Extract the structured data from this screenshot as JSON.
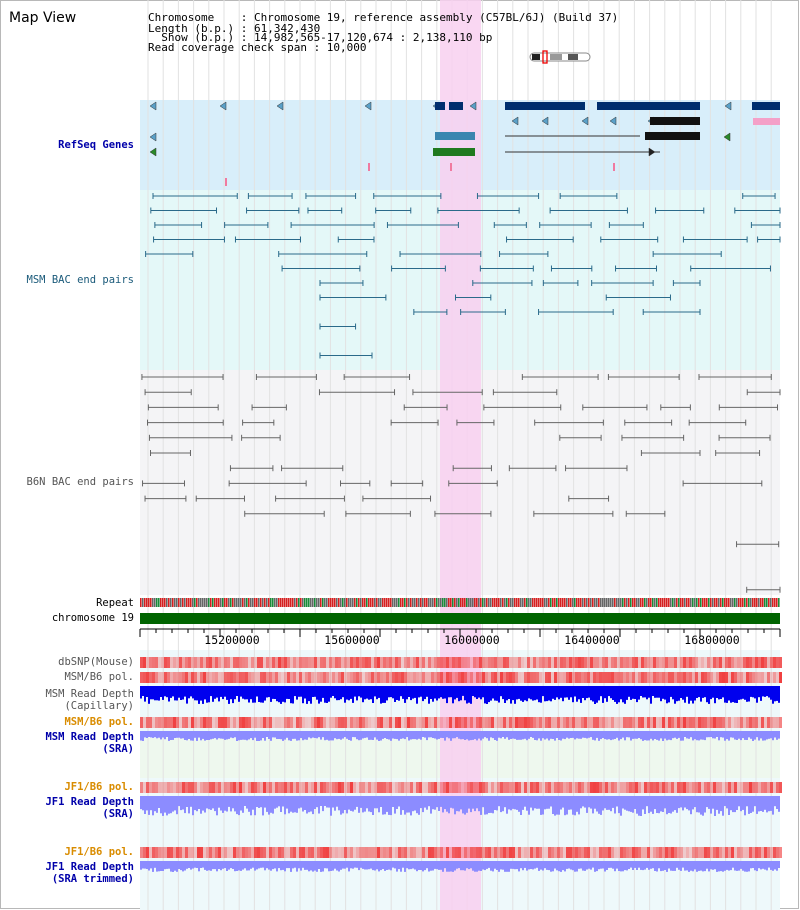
{
  "header": {
    "title": "Map View",
    "chromosome_line": "Chromosome    : Chromosome 19, reference assembly (C57BL/6J) (Build 37)",
    "length_line": "Length (b.p.) : 61,342,430",
    "show_line": "  Show (b.p.) : 14,982,565-17,120,674 : 2,138,110 bp",
    "coverage_line": "Read coverage check span : 10,000"
  },
  "tracks": {
    "refseq": "RefSeq Genes",
    "msm_bac": "MSM BAC end pairs",
    "b6n_bac": "B6N BAC end pairs",
    "repeat": "Repeat",
    "chromosome": "chromosome 19",
    "dbsnp": "dbSNP(Mouse)",
    "msm_b6_pol_1": "MSM/B6 pol.",
    "msm_depth_cap_1": "MSM Read Depth",
    "msm_depth_cap_2": "(Capillary)",
    "msm_b6_pol_2": "MSM/B6 pol.",
    "msm_depth_sra_1": "MSM Read Depth",
    "msm_depth_sra_2": "(SRA)",
    "jf1_b6_pol_1": "JF1/B6 pol.",
    "jf1_depth_sra_1": "JF1 Read Depth",
    "jf1_depth_sra_2": "(SRA)",
    "jf1_b6_pol_2": "JF1/B6 pol.",
    "jf1_depth_trim_1": "JF1 Read Depth",
    "jf1_depth_trim_2": "(SRA trimmed)"
  },
  "axis": {
    "ticks": [
      "15200000",
      "15600000",
      "16000000",
      "16400000",
      "16800000"
    ]
  },
  "colors": {
    "refseq_bg": "#d8eefa",
    "msm_bg": "#e4f8f8",
    "b6n_bg": "#f4f4f6",
    "highlight": "#f8d0f0",
    "chromosome": "#006400",
    "gene": "#002e6e",
    "snp": "#f46a6a",
    "depth_blue": "#0000ee",
    "depth_light": "#8c8cff"
  },
  "icons": {
    "ideogram": "chromosome-ideogram-icon"
  }
}
